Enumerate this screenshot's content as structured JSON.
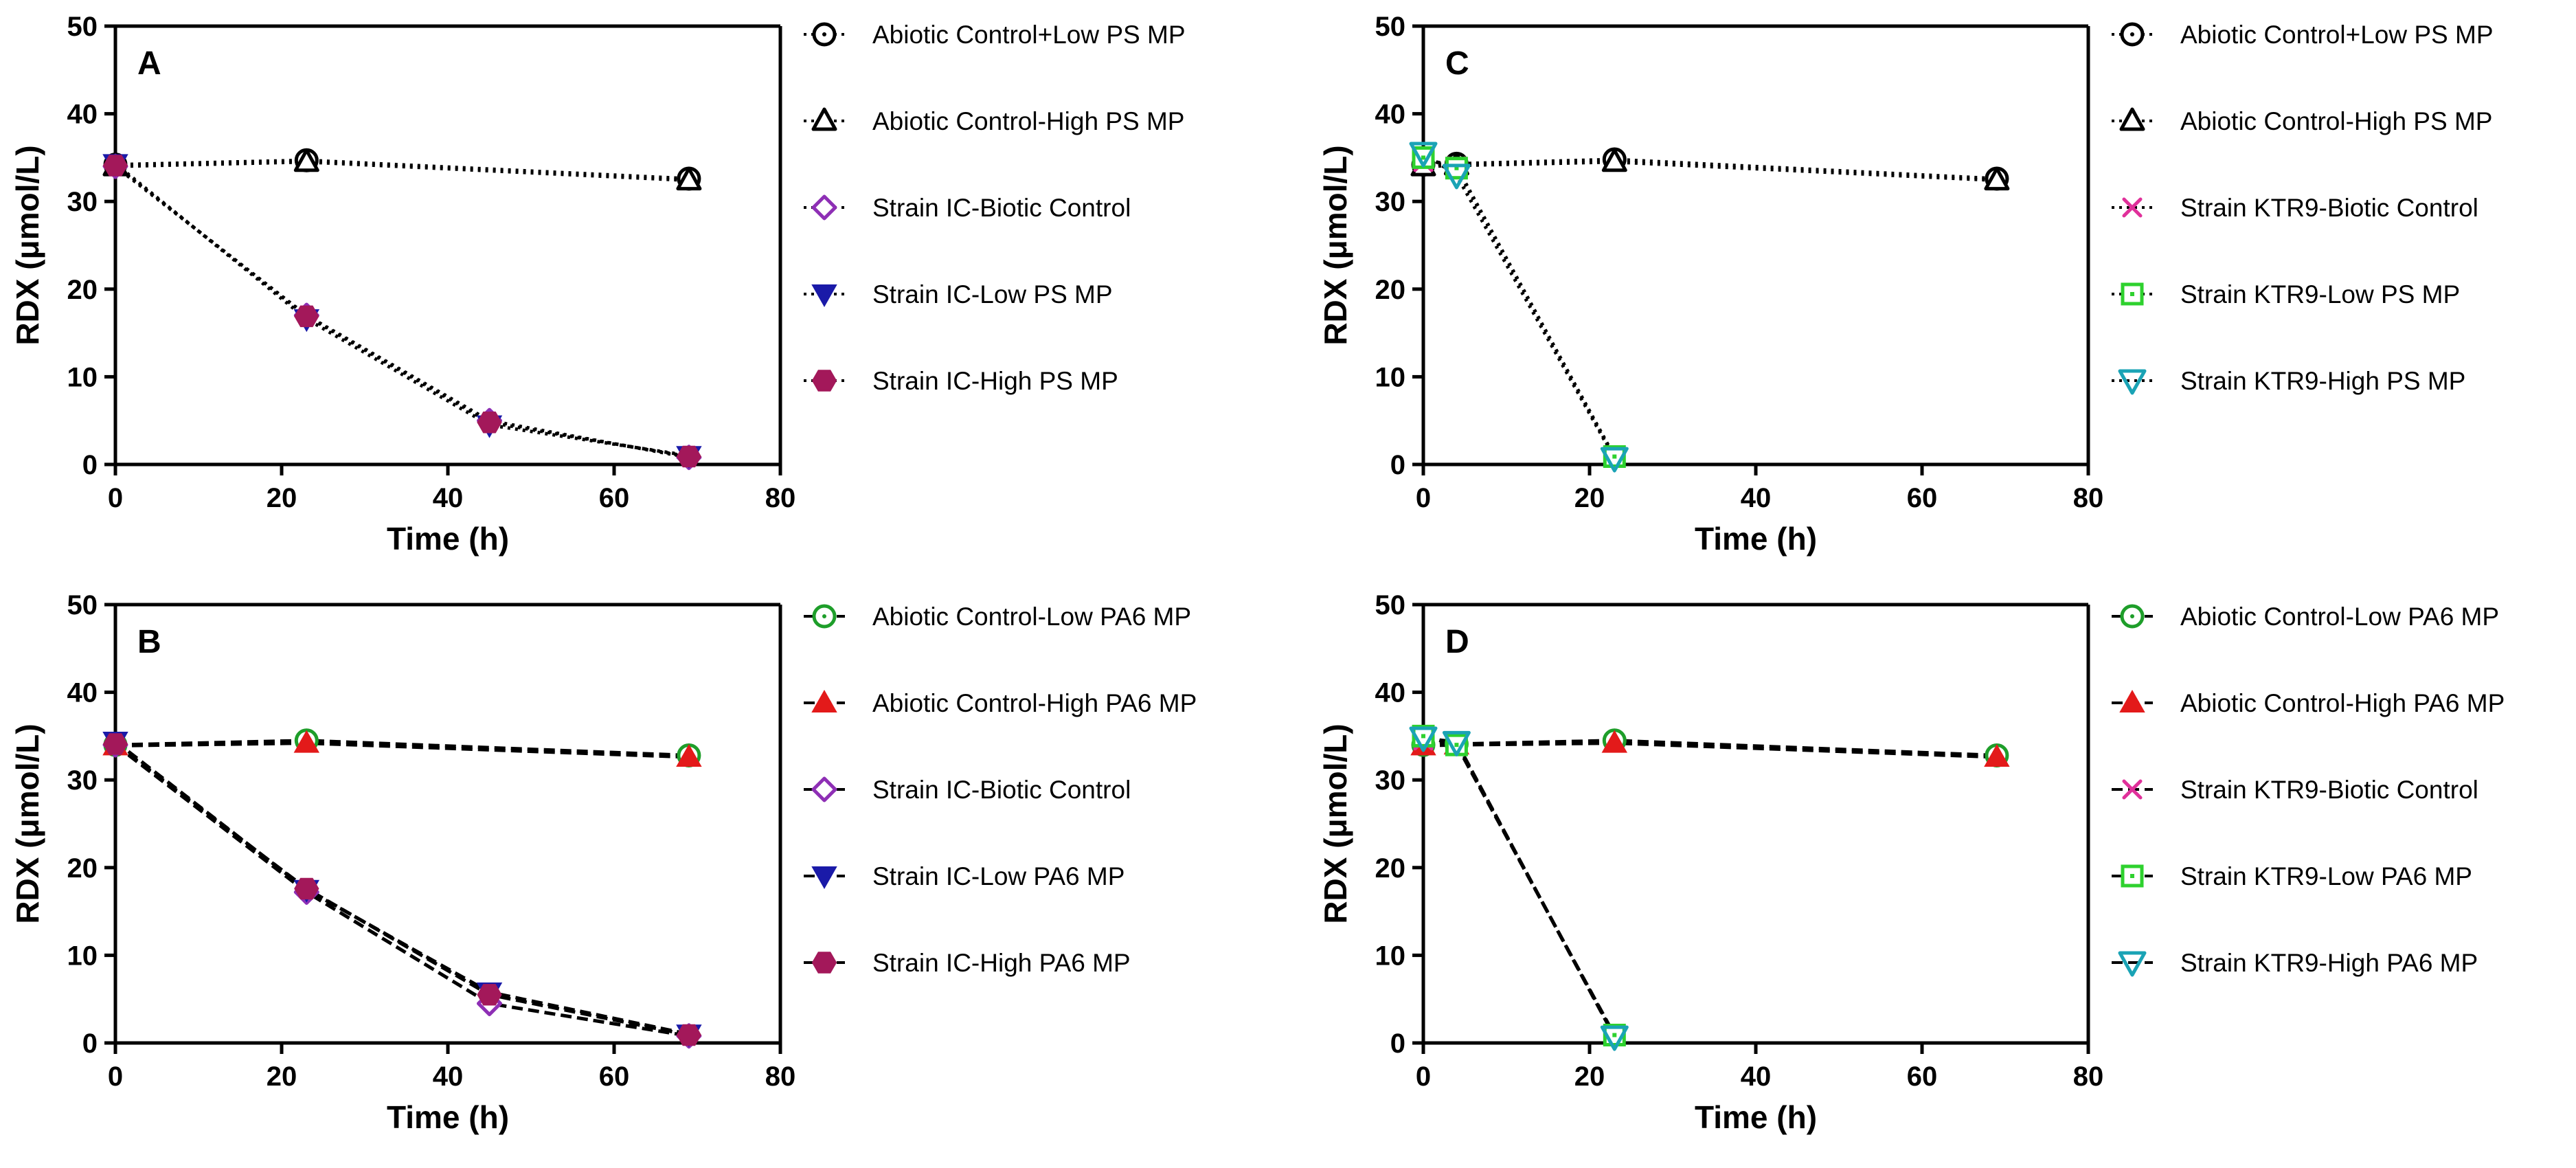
{
  "chart_data": [
    {
      "panel": "A",
      "type": "line",
      "xlabel": "Time (h)",
      "ylabel": "RDX (μmol/L)",
      "xlim": [
        0,
        80
      ],
      "ylim": [
        0,
        50
      ],
      "xticks": [
        0,
        20,
        40,
        60,
        80
      ],
      "yticks": [
        0,
        10,
        20,
        30,
        40,
        50
      ],
      "line_style": "dotted",
      "series": [
        {
          "name": "Abiotic Control+Low PS MP",
          "marker": "circle-open",
          "color": "#000000",
          "x": [
            0,
            23,
            69
          ],
          "values": [
            34.2,
            34.7,
            32.6
          ]
        },
        {
          "name": "Abiotic Control-High PS MP",
          "marker": "triangle-up-open",
          "color": "#000000",
          "x": [
            0,
            23,
            69
          ],
          "values": [
            34.0,
            34.5,
            32.4
          ]
        },
        {
          "name": "Strain IC-Biotic Control",
          "marker": "diamond-open",
          "color": "#8e2fb5",
          "x": [
            0,
            23,
            45,
            69
          ],
          "values": [
            34.0,
            17.0,
            5.0,
            0.8
          ]
        },
        {
          "name": "Strain IC-Low PS MP",
          "marker": "triangle-down-filled",
          "color": "#1a1aa8",
          "x": [
            0,
            23,
            45,
            69
          ],
          "values": [
            34.3,
            16.6,
            4.5,
            1.0
          ]
        },
        {
          "name": "Strain IC-High PS MP",
          "marker": "hexagon-filled",
          "color": "#a3185a",
          "x": [
            0,
            23,
            45,
            69
          ],
          "values": [
            34.1,
            16.9,
            4.8,
            0.9
          ]
        }
      ]
    },
    {
      "panel": "B",
      "type": "line",
      "xlabel": "Time (h)",
      "ylabel": "RDX (μmol/L)",
      "xlim": [
        0,
        80
      ],
      "ylim": [
        0,
        50
      ],
      "xticks": [
        0,
        20,
        40,
        60,
        80
      ],
      "yticks": [
        0,
        10,
        20,
        30,
        40,
        50
      ],
      "line_style": "dashed",
      "series": [
        {
          "name": "Abiotic Control-Low PA6 MP",
          "marker": "circle-open",
          "color": "#1e9e2a",
          "x": [
            0,
            23,
            69
          ],
          "values": [
            34.0,
            34.5,
            32.8
          ]
        },
        {
          "name": "Abiotic Control-High PA6 MP",
          "marker": "triangle-up-filled",
          "color": "#e31a1a",
          "x": [
            0,
            23,
            69
          ],
          "values": [
            33.9,
            34.2,
            32.6
          ]
        },
        {
          "name": "Strain IC-Biotic Control",
          "marker": "diamond-open",
          "color": "#8e2fb5",
          "x": [
            0,
            23,
            45,
            69
          ],
          "values": [
            34.0,
            17.2,
            4.5,
            0.8
          ]
        },
        {
          "name": "Strain IC-Low PA6 MP",
          "marker": "triangle-down-filled",
          "color": "#1a1aa8",
          "x": [
            0,
            23,
            45,
            69
          ],
          "values": [
            34.4,
            17.5,
            5.8,
            1.0
          ]
        },
        {
          "name": "Strain IC-High PA6 MP",
          "marker": "hexagon-filled",
          "color": "#a3185a",
          "x": [
            0,
            23,
            45,
            69
          ],
          "values": [
            34.1,
            17.6,
            5.5,
            0.9
          ]
        }
      ]
    },
    {
      "panel": "C",
      "type": "line",
      "xlabel": "Time (h)",
      "ylabel": "RDX (μmol/L)",
      "xlim": [
        0,
        80
      ],
      "ylim": [
        0,
        50
      ],
      "xticks": [
        0,
        20,
        40,
        60,
        80
      ],
      "yticks": [
        0,
        10,
        20,
        30,
        40,
        50
      ],
      "line_style": "dotted",
      "series": [
        {
          "name": "Abiotic Control+Low PS MP",
          "marker": "circle-open",
          "color": "#000000",
          "x": [
            0,
            4,
            23,
            69
          ],
          "values": [
            34.2,
            34.3,
            34.8,
            32.6
          ]
        },
        {
          "name": "Abiotic Control-High PS MP",
          "marker": "triangle-up-open",
          "color": "#000000",
          "x": [
            0,
            4,
            23,
            69
          ],
          "values": [
            34.0,
            34.1,
            34.5,
            32.4
          ]
        },
        {
          "name": "Strain KTR9-Biotic Control",
          "marker": "x",
          "color": "#e0309a",
          "x": [
            0,
            4,
            23
          ],
          "values": [
            34.5,
            34.0,
            0.8
          ]
        },
        {
          "name": "Strain KTR9-Low PS MP",
          "marker": "square-open",
          "color": "#2ed12e",
          "x": [
            0,
            4,
            23
          ],
          "values": [
            35.0,
            33.8,
            0.9
          ]
        },
        {
          "name": "Strain KTR9-High PS MP",
          "marker": "triangle-down-open",
          "color": "#1aa3b5",
          "x": [
            0,
            4,
            23
          ],
          "values": [
            35.5,
            33.0,
            0.7
          ]
        }
      ]
    },
    {
      "panel": "D",
      "type": "line",
      "xlabel": "Time (h)",
      "ylabel": "RDX (μmol/L)",
      "xlim": [
        0,
        80
      ],
      "ylim": [
        0,
        50
      ],
      "xticks": [
        0,
        20,
        40,
        60,
        80
      ],
      "yticks": [
        0,
        10,
        20,
        30,
        40,
        50
      ],
      "line_style": "dashed",
      "series": [
        {
          "name": "Abiotic Control-Low PA6 MP",
          "marker": "circle-open",
          "color": "#1e9e2a",
          "x": [
            0,
            4,
            23,
            69
          ],
          "values": [
            34.0,
            34.1,
            34.5,
            32.8
          ]
        },
        {
          "name": "Abiotic Control-High PA6 MP",
          "marker": "triangle-up-filled",
          "color": "#e31a1a",
          "x": [
            0,
            4,
            23,
            69
          ],
          "values": [
            33.9,
            34.0,
            34.2,
            32.6
          ]
        },
        {
          "name": "Strain KTR9-Biotic Control",
          "marker": "x",
          "color": "#e0309a",
          "x": [
            0,
            4,
            23
          ],
          "values": [
            34.5,
            34.2,
            0.8
          ]
        },
        {
          "name": "Strain KTR9-Low PA6 MP",
          "marker": "square-open",
          "color": "#2ed12e",
          "x": [
            0,
            4,
            23
          ],
          "values": [
            35.0,
            34.0,
            0.9
          ]
        },
        {
          "name": "Strain KTR9-High PA6 MP",
          "marker": "triangle-down-open",
          "color": "#1aa3b5",
          "x": [
            0,
            4,
            23
          ],
          "values": [
            34.8,
            34.3,
            0.7
          ]
        }
      ]
    }
  ]
}
